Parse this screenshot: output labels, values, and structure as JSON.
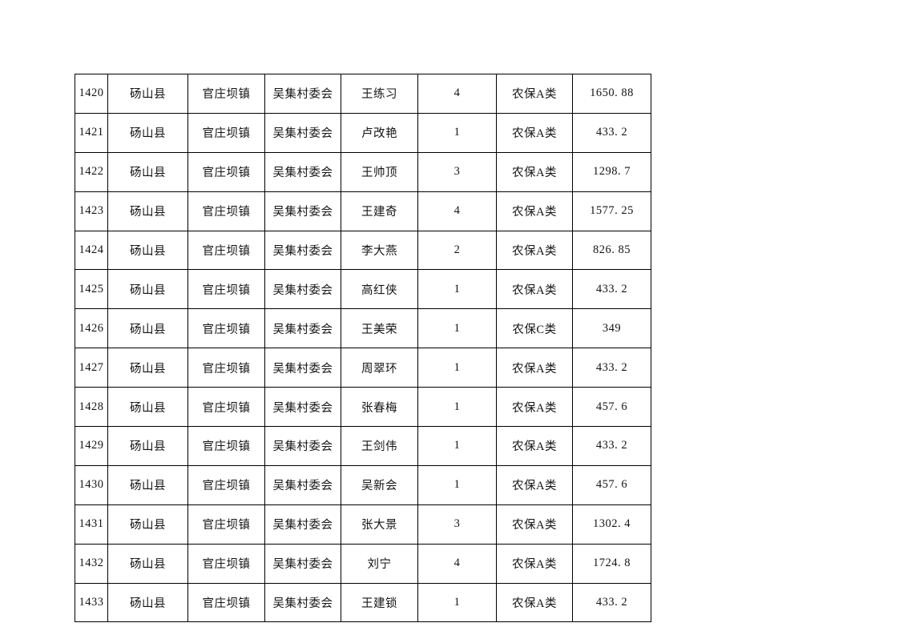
{
  "page": {
    "background_color": "#ffffff",
    "text_color": "#141414",
    "table_border_color": "#000000"
  },
  "table": {
    "column_count": 8,
    "rows": [
      [
        "1420",
        "砀山县",
        "官庄坝镇",
        "吴集村委会",
        "王练习",
        "4",
        "农保A类",
        "1650. 88"
      ],
      [
        "1421",
        "砀山县",
        "官庄坝镇",
        "吴集村委会",
        "卢改艳",
        "1",
        "农保A类",
        "433. 2"
      ],
      [
        "1422",
        "砀山县",
        "官庄坝镇",
        "吴集村委会",
        "王帅顶",
        "3",
        "农保A类",
        "1298. 7"
      ],
      [
        "1423",
        "砀山县",
        "官庄坝镇",
        "吴集村委会",
        "王建奇",
        "4",
        "农保A类",
        "1577. 25"
      ],
      [
        "1424",
        "砀山县",
        "官庄坝镇",
        "吴集村委会",
        "李大燕",
        "2",
        "农保A类",
        "826. 85"
      ],
      [
        "1425",
        "砀山县",
        "官庄坝镇",
        "吴集村委会",
        "高红侠",
        "1",
        "农保A类",
        "433. 2"
      ],
      [
        "1426",
        "砀山县",
        "官庄坝镇",
        "吴集村委会",
        "王美荣",
        "1",
        "农保C类",
        "349"
      ],
      [
        "1427",
        "砀山县",
        "官庄坝镇",
        "吴集村委会",
        "周翠环",
        "1",
        "农保A类",
        "433. 2"
      ],
      [
        "1428",
        "砀山县",
        "官庄坝镇",
        "吴集村委会",
        "张春梅",
        "1",
        "农保A类",
        "457. 6"
      ],
      [
        "1429",
        "砀山县",
        "官庄坝镇",
        "吴集村委会",
        "王剑伟",
        "1",
        "农保A类",
        "433. 2"
      ],
      [
        "1430",
        "砀山县",
        "官庄坝镇",
        "吴集村委会",
        "吴新会",
        "1",
        "农保A类",
        "457. 6"
      ],
      [
        "1431",
        "砀山县",
        "官庄坝镇",
        "吴集村委会",
        "张大景",
        "3",
        "农保A类",
        "1302. 4"
      ],
      [
        "1432",
        "砀山县",
        "官庄坝镇",
        "吴集村委会",
        "刘宁",
        "4",
        "农保A类",
        "1724. 8"
      ],
      [
        "1433",
        "砀山县",
        "官庄坝镇",
        "吴集村委会",
        "王建锁",
        "1",
        "农保A类",
        "433. 2"
      ]
    ]
  }
}
